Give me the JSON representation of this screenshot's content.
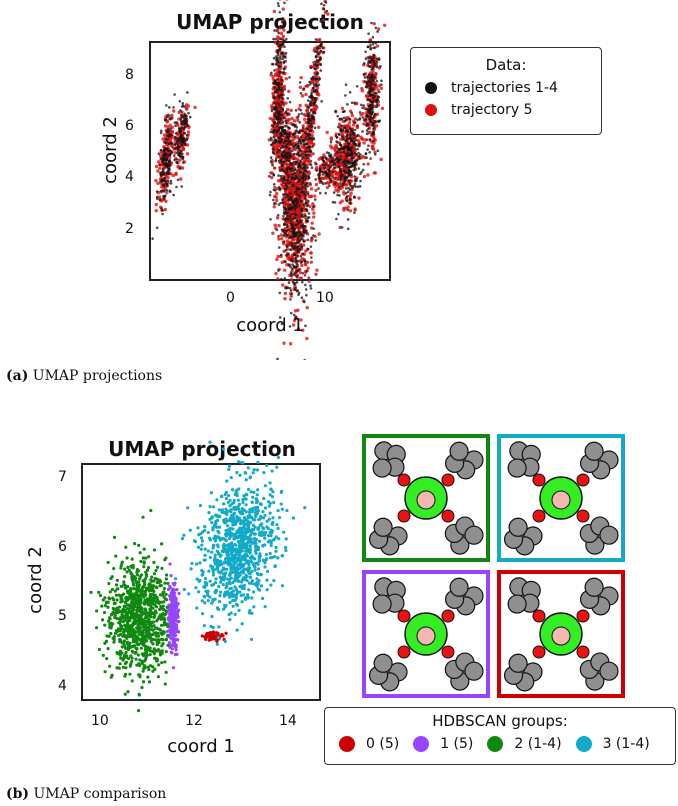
{
  "panel_a": {
    "title": "UMAP projection",
    "xlabel": "coord 1",
    "ylabel": "coord 2",
    "xticks": [
      "0",
      "10"
    ],
    "yticks": [
      "2",
      "4",
      "6",
      "8"
    ],
    "legend_title": "Data:",
    "legend": [
      {
        "label": "trajectories 1-4",
        "color": "#111111"
      },
      {
        "label": "trajectory 5",
        "color": "#e01010"
      }
    ],
    "caption_label": "(a)",
    "caption_text": "UMAP projections"
  },
  "panel_b": {
    "title": "UMAP projection",
    "xlabel": "coord 1",
    "ylabel": "coord 2",
    "xticks": [
      "10",
      "12",
      "14"
    ],
    "yticks": [
      "4",
      "5",
      "6",
      "7"
    ],
    "legend_title": "HDBSCAN groups:",
    "legend": [
      {
        "label": "0 (5)",
        "color": "#cc0000"
      },
      {
        "label": "1 (5)",
        "color": "#9945ff"
      },
      {
        "label": "2 (1-4)",
        "color": "#118811"
      },
      {
        "label": "3 (1-4)",
        "color": "#12aac8"
      }
    ],
    "caption_label": "(b)",
    "caption_text": "UMAP comparison"
  },
  "chart_data": [
    {
      "type": "scatter",
      "title": "UMAP projection",
      "xlabel": "coord 1",
      "ylabel": "coord 2",
      "xlim": [
        -9,
        16.5
      ],
      "ylim": [
        0.7,
        9.2
      ],
      "series": [
        {
          "name": "trajectories 1-4",
          "color": "#111111",
          "clusters": [
            [
              -7.3,
              5.0
            ],
            [
              -5.5,
              5.8
            ],
            [
              4.5,
              7.5
            ],
            [
              6.5,
              3.5
            ],
            [
              11.5,
              5.0
            ],
            [
              14.5,
              7.5
            ],
            [
              10.0,
              7.0
            ]
          ]
        },
        {
          "name": "trajectory 5",
          "color": "#e01010",
          "clusters": [
            [
              -7.3,
              5.0
            ],
            [
              -5.5,
              5.8
            ],
            [
              4.5,
              7.5
            ],
            [
              6.5,
              3.0
            ],
            [
              11.5,
              5.0
            ],
            [
              14.5,
              7.5
            ]
          ]
        }
      ]
    },
    {
      "type": "scatter",
      "title": "UMAP projection",
      "xlabel": "coord 1",
      "ylabel": "coord 2",
      "xlim": [
        9.6,
        15.4
      ],
      "ylim": [
        3.8,
        7.2
      ],
      "series": [
        {
          "name": "0 (5)",
          "color": "#cc0000",
          "center": [
            12.8,
            4.72
          ],
          "spread": [
            0.25,
            0.06
          ]
        },
        {
          "name": "1 (5)",
          "color": "#9945ff",
          "center": [
            11.82,
            5.0
          ],
          "spread": [
            0.12,
            0.5
          ]
        },
        {
          "name": "2 (1-4)",
          "color": "#118811",
          "center": [
            10.95,
            5.0
          ],
          "spread": [
            0.75,
            0.8
          ]
        },
        {
          "name": "3 (1-4)",
          "color": "#12aac8",
          "center": [
            13.4,
            6.0
          ],
          "spread": [
            0.9,
            0.95
          ]
        }
      ]
    }
  ],
  "structures": [
    {
      "group": "2 (1-4)",
      "frame_color": "#118811"
    },
    {
      "group": "3 (1-4)",
      "frame_color": "#12aac8"
    },
    {
      "group": "1 (5)",
      "frame_color": "#9945ff"
    },
    {
      "group": "0 (5)",
      "frame_color": "#cc0000"
    }
  ]
}
